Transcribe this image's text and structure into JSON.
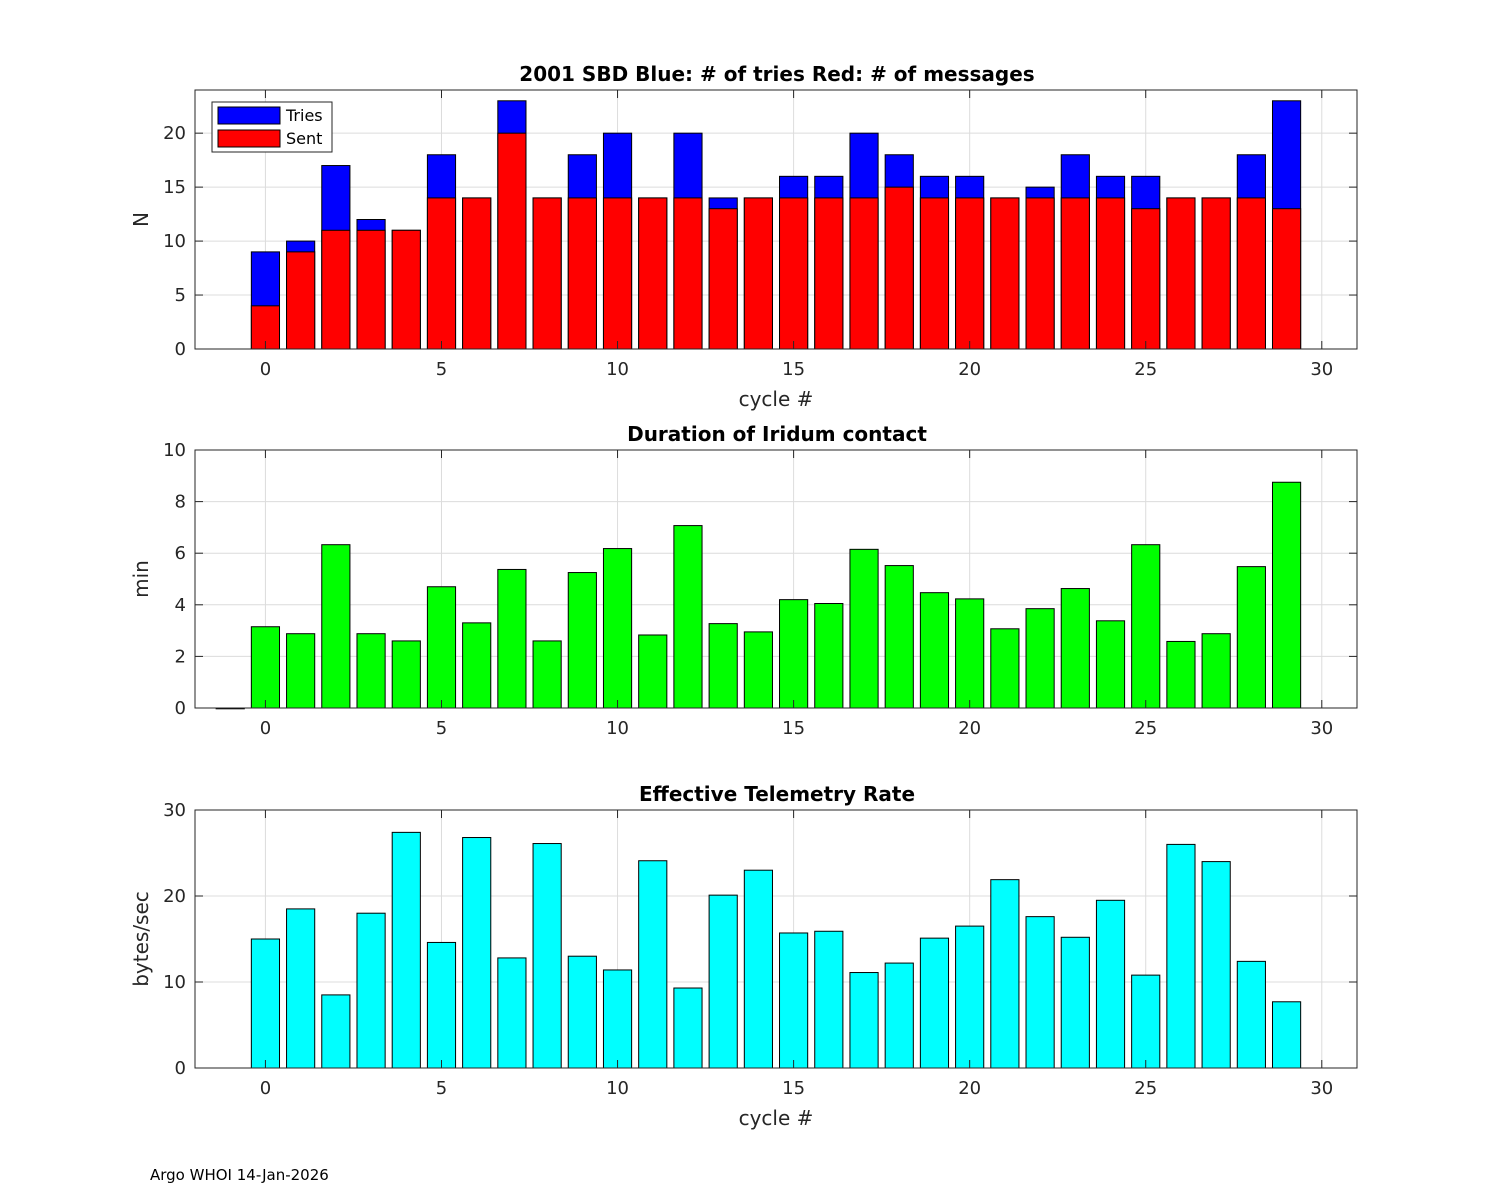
{
  "chart_data": [
    {
      "type": "bar",
      "stacked": "overlay",
      "title": "2001 SBD  Blue: # of tries   Red: # of messages",
      "xlabel": "cycle #",
      "ylabel": "N",
      "xlim": [
        -2,
        31
      ],
      "ylim": [
        0,
        24
      ],
      "xticks": [
        0,
        5,
        10,
        15,
        20,
        25,
        30
      ],
      "yticks": [
        0,
        5,
        10,
        15,
        20
      ],
      "grid": true,
      "legend": {
        "position": "top-left",
        "entries": [
          "Tries",
          "Sent"
        ]
      },
      "x": [
        0,
        1,
        2,
        3,
        4,
        5,
        6,
        7,
        8,
        9,
        10,
        11,
        12,
        13,
        14,
        15,
        16,
        17,
        18,
        19,
        20,
        21,
        22,
        23,
        24,
        25,
        26,
        27,
        28,
        29
      ],
      "series": [
        {
          "name": "Tries",
          "color": "#0000ff",
          "values": [
            9,
            10,
            17,
            12,
            11,
            18,
            14,
            23,
            14,
            18,
            20,
            14,
            20,
            14,
            14,
            16,
            16,
            20,
            18,
            16,
            16,
            14,
            15,
            18,
            16,
            16,
            14,
            14,
            18,
            23
          ]
        },
        {
          "name": "Sent",
          "color": "#ff0000",
          "values": [
            4,
            9,
            11,
            11,
            11,
            14,
            14,
            20,
            14,
            14,
            14,
            14,
            14,
            13,
            14,
            14,
            14,
            14,
            15,
            14,
            14,
            14,
            14,
            14,
            14,
            13,
            14,
            14,
            14,
            13
          ]
        }
      ]
    },
    {
      "type": "bar",
      "title": "Duration of Iridum contact",
      "xlabel": "",
      "ylabel": "min",
      "xlim": [
        -2,
        31
      ],
      "ylim": [
        0,
        10
      ],
      "xticks": [
        0,
        5,
        10,
        15,
        20,
        25,
        30
      ],
      "yticks": [
        0,
        2,
        4,
        6,
        8,
        10
      ],
      "grid": true,
      "x": [
        -1,
        0,
        1,
        2,
        3,
        4,
        5,
        6,
        7,
        8,
        9,
        10,
        11,
        12,
        13,
        14,
        15,
        16,
        17,
        18,
        19,
        20,
        21,
        22,
        23,
        24,
        25,
        26,
        27,
        28,
        29
      ],
      "series": [
        {
          "name": "Duration",
          "color": "#00ff00",
          "values": [
            0,
            3.15,
            2.88,
            6.33,
            2.88,
            2.6,
            4.7,
            3.3,
            5.37,
            2.6,
            5.25,
            6.18,
            2.83,
            7.07,
            3.27,
            2.95,
            4.2,
            4.05,
            6.15,
            5.52,
            4.47,
            4.23,
            3.07,
            3.85,
            4.63,
            3.38,
            6.33,
            2.58,
            2.88,
            5.48,
            8.75
          ]
        }
      ]
    },
    {
      "type": "bar",
      "title": "Effective Telemetry Rate",
      "xlabel": "cycle #",
      "ylabel": "bytes/sec",
      "xlim": [
        -2,
        31
      ],
      "ylim": [
        0,
        30
      ],
      "xticks": [
        0,
        5,
        10,
        15,
        20,
        25,
        30
      ],
      "yticks": [
        0,
        10,
        20,
        30
      ],
      "grid": true,
      "x": [
        0,
        1,
        2,
        3,
        4,
        5,
        6,
        7,
        8,
        9,
        10,
        11,
        12,
        13,
        14,
        15,
        16,
        17,
        18,
        19,
        20,
        21,
        22,
        23,
        24,
        25,
        26,
        27,
        28,
        29
      ],
      "series": [
        {
          "name": "Rate",
          "color": "#00ffff",
          "values": [
            15,
            18.5,
            8.5,
            18,
            27.4,
            14.6,
            26.8,
            12.8,
            26.1,
            13,
            11.4,
            24.1,
            9.3,
            20.1,
            23,
            15.7,
            15.9,
            11.1,
            12.2,
            15.1,
            16.5,
            21.9,
            17.6,
            15.2,
            19.5,
            10.8,
            26,
            24,
            12.4,
            7.7
          ]
        }
      ]
    }
  ],
  "footer": {
    "text": "Argo WHOI 14-Jan-2026"
  }
}
